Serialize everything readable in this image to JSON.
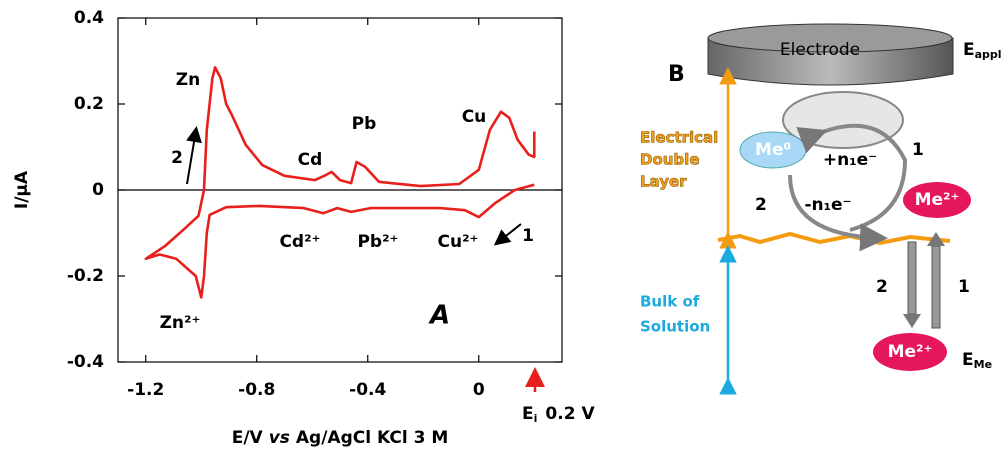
{
  "chart_data": {
    "type": "line",
    "x": [
      0.2,
      0.13,
      0.06,
      0.0,
      -0.05,
      -0.14,
      -0.28,
      -0.39,
      -0.46,
      -0.51,
      -0.56,
      -0.63,
      -0.79,
      -0.91,
      -0.97,
      -0.98,
      -0.99,
      -1.0,
      -1.02,
      -1.09,
      -1.15,
      -1.2,
      -1.13,
      -1.06,
      -1.01,
      -0.99,
      -0.98,
      -0.96,
      -0.95,
      -0.93,
      -0.91,
      -0.89,
      -0.84,
      -0.78,
      -0.7,
      -0.59,
      -0.55,
      -0.53,
      -0.5,
      -0.46,
      -0.44,
      -0.41,
      -0.36,
      -0.21,
      -0.07,
      0.0,
      0.04,
      0.08,
      0.11,
      0.14,
      0.18,
      0.2,
      0.2
    ],
    "values": [
      0.012,
      0,
      -0.03,
      -0.063,
      -0.047,
      -0.042,
      -0.042,
      -0.042,
      -0.051,
      -0.042,
      -0.054,
      -0.042,
      -0.037,
      -0.04,
      -0.058,
      -0.1,
      -0.2,
      -0.25,
      -0.2,
      -0.16,
      -0.15,
      -0.16,
      -0.13,
      -0.09,
      -0.06,
      0,
      0.14,
      0.26,
      0.285,
      0.26,
      0.2,
      0.175,
      0.105,
      0.058,
      0.033,
      0.023,
      0.035,
      0.042,
      0.023,
      0.016,
      0.065,
      0.054,
      0.019,
      0.009,
      0.014,
      0.047,
      0.14,
      0.182,
      0.168,
      0.117,
      0.082,
      0.077,
      0.136
    ],
    "color": "#e8201c",
    "xlim": [
      -1.3,
      0.3
    ],
    "ylim": [
      -0.4,
      0.4
    ],
    "xticks": [
      -1.2,
      -0.8,
      -0.4,
      0
    ],
    "yticks": [
      -0.4,
      -0.2,
      0,
      0.2,
      0.4
    ],
    "x_label": {
      "quantity": "E/V",
      "vs": "vs",
      "reference": "Ag/AgCl KCl 3 M"
    },
    "y_label": "I/µA",
    "panel_label": "A",
    "annotations": [
      "Zn",
      "Cd",
      "Pb",
      "Cu",
      "Zn²⁺",
      "Cd²⁺",
      "Pb²⁺",
      "Cu²⁺",
      "2",
      "1"
    ],
    "start_potential": {
      "symbol": "E",
      "subscript": "i",
      "text": "0.2 V"
    }
  },
  "diagram": {
    "panel_label": "B",
    "electrode": "Electrode",
    "applied_potential": {
      "symbol": "E",
      "subscript": "appl"
    },
    "double_layer": [
      "Electrical",
      "Double",
      "Layer"
    ],
    "bulk": [
      "Bulk of",
      "Solution"
    ],
    "metal": "Me⁰",
    "oxidation": "+n₁e⁻",
    "reduction": "-n₁e⁻",
    "ion_surface": "Me²⁺",
    "ion_bulk": "Me²⁺",
    "steps": [
      "1",
      "2",
      "2",
      "1"
    ],
    "equilibrium_potential": {
      "symbol": "E",
      "subscript": "Me"
    }
  }
}
